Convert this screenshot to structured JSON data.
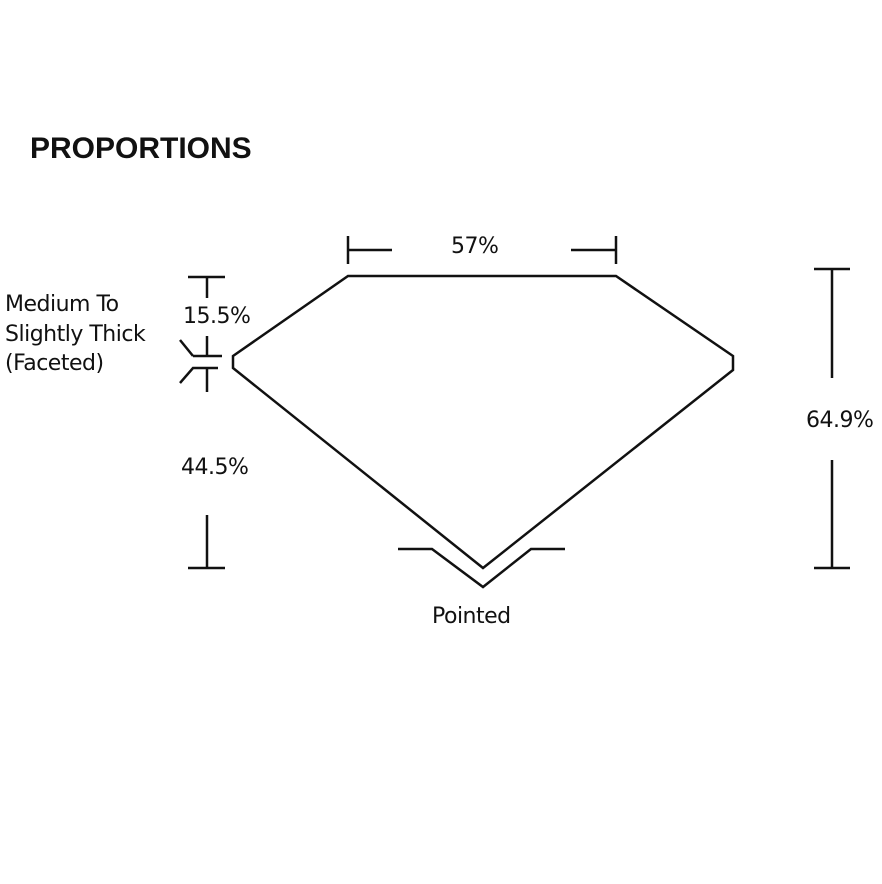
{
  "title": "PROPORTIONS",
  "labels": {
    "table": "57%",
    "crown": "15.5%",
    "pavilion": "44.5%",
    "depth": "64.9%",
    "culet": "Pointed",
    "girdle": [
      "Medium To",
      "Slightly Thick",
      "(Faceted)"
    ]
  },
  "colors": {
    "line": "#111111",
    "background": "#ffffff"
  }
}
